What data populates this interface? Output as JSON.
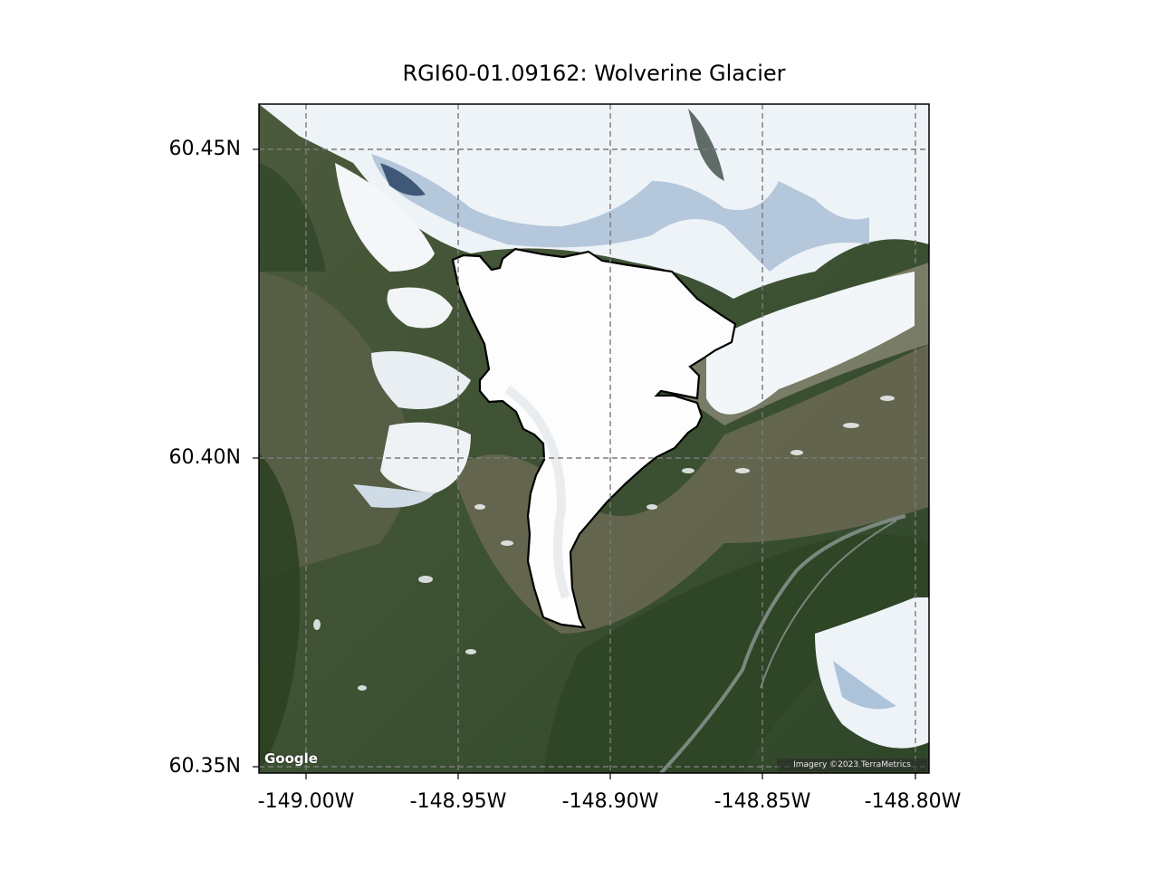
{
  "title": "RGI60-01.09162: Wolverine Glacier",
  "axes": {
    "x_ticks": [
      {
        "value": -149.0,
        "label": "-149.00W"
      },
      {
        "value": -148.95,
        "label": "-148.95W"
      },
      {
        "value": -148.9,
        "label": "-148.90W"
      },
      {
        "value": -148.85,
        "label": "-148.85W"
      },
      {
        "value": -148.8,
        "label": "-148.80W"
      }
    ],
    "y_ticks": [
      {
        "value": 60.45,
        "label": "60.45N"
      },
      {
        "value": 60.4,
        "label": "60.40N"
      },
      {
        "value": 60.35,
        "label": "60.35N"
      }
    ],
    "lon_range": [
      -149.0153,
      -148.7952
    ],
    "lat_range": [
      60.349,
      60.4573
    ],
    "grid": true
  },
  "map": {
    "basemap": "satellite imagery",
    "glacier_outline": {
      "name": "Wolverine Glacier",
      "id": "RGI60-01.09162",
      "color": "#000000",
      "fill": "#ffffff"
    },
    "attribution": {
      "google": "Google",
      "imagery": "Imagery ©2023 TerraMetrics"
    }
  }
}
